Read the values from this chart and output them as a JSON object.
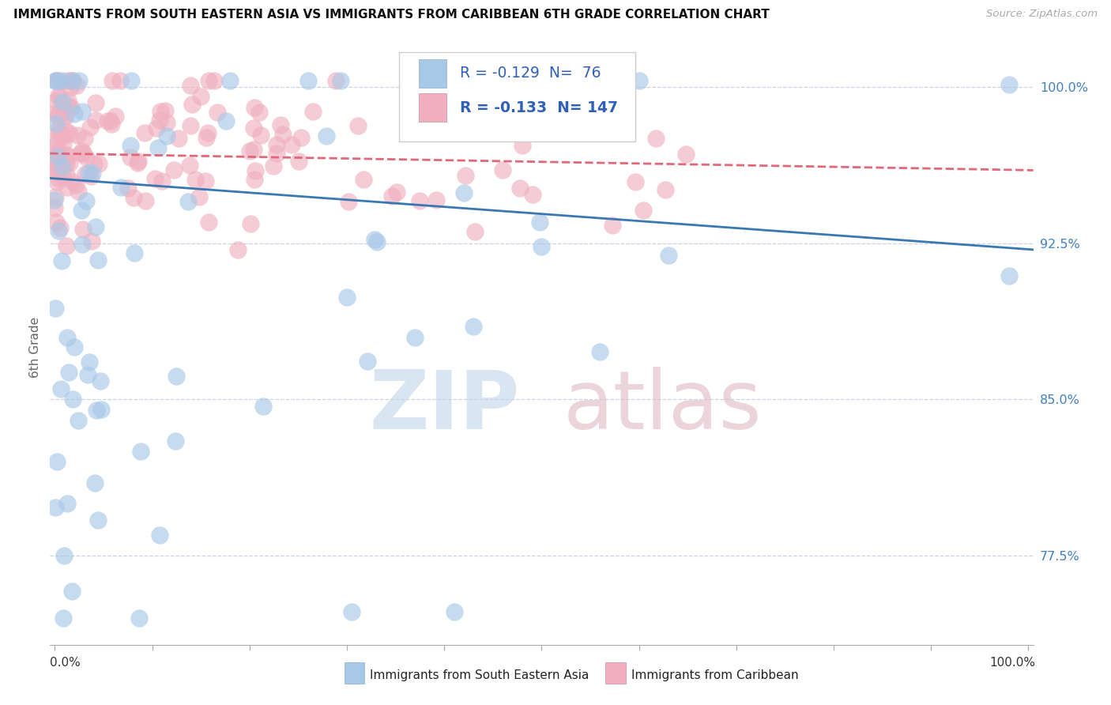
{
  "title": "IMMIGRANTS FROM SOUTH EASTERN ASIA VS IMMIGRANTS FROM CARIBBEAN 6TH GRADE CORRELATION CHART",
  "source": "Source: ZipAtlas.com",
  "ylabel": "6th Grade",
  "series1_label": "Immigrants from South Eastern Asia",
  "series2_label": "Immigrants from Caribbean",
  "color1": "#a8c8e8",
  "color2": "#f0b0c0",
  "trendline1_color": "#3878b4",
  "trendline2_color": "#e06878",
  "legend_text_color": "#3060b8",
  "ytick_color": "#4080c0",
  "watermark_zip_color": "#c0d4e8",
  "watermark_atlas_color": "#e0b8c4",
  "ylim_min": 0.732,
  "ylim_max": 1.018,
  "yticks": [
    0.775,
    0.85,
    0.925,
    1.0
  ],
  "ytick_labels": [
    "77.5%",
    "85.0%",
    "92.5%",
    "100.0%"
  ],
  "r1_val": "-0.129",
  "n1_val": "76",
  "r2_val": "-0.133",
  "n2_val": "147",
  "n1": 76,
  "n2": 147
}
